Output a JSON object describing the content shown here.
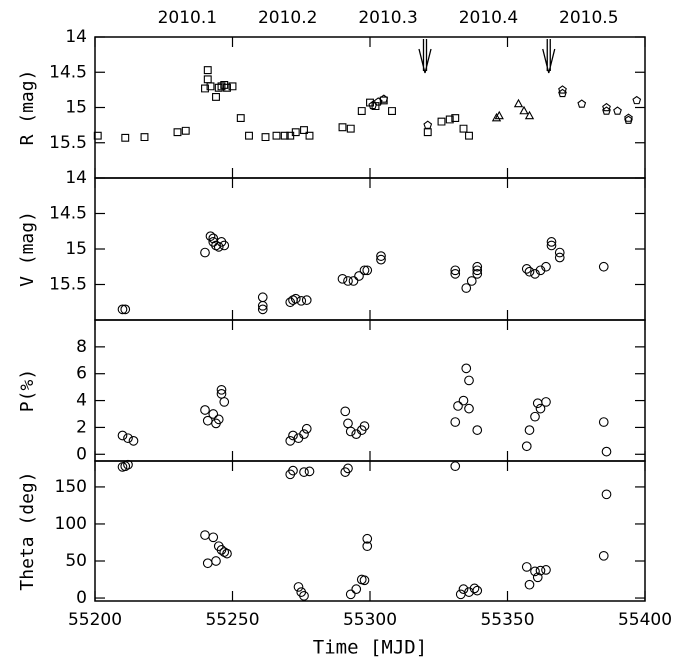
{
  "chart_data": [
    {
      "type": "scatter",
      "y_label": "R (mag)",
      "ylim": [
        16,
        14
      ],
      "yticks": [
        14,
        14.5,
        15,
        15.5
      ],
      "x2lim": [
        2010.008,
        2010.556
      ],
      "x2ticks": [
        2010.1,
        2010.2,
        2010.3,
        2010.4,
        2010.5
      ],
      "arrows": [
        55320,
        55365
      ],
      "series": [
        {
          "marker": "square",
          "color": "#000000",
          "x": [
            55201,
            55211,
            55218,
            55230,
            55233,
            55240,
            55241,
            55241,
            55242,
            55244,
            55245,
            55246,
            55247,
            55248,
            55250,
            55253,
            55256,
            55262,
            55266,
            55269,
            55271,
            55273,
            55276,
            55278,
            55290,
            55293,
            55297,
            55300,
            55302,
            55305,
            55308,
            55321,
            55326,
            55329,
            55331,
            55334,
            55336
          ],
          "values": [
            15.4,
            15.43,
            15.42,
            15.35,
            15.33,
            14.73,
            14.6,
            14.47,
            14.7,
            14.85,
            14.72,
            14.7,
            14.68,
            14.72,
            14.7,
            15.15,
            15.4,
            15.42,
            15.4,
            15.4,
            15.4,
            15.35,
            15.32,
            15.4,
            15.28,
            15.3,
            15.05,
            14.93,
            14.98,
            14.9,
            15.05,
            15.35,
            15.2,
            15.17,
            15.15,
            15.3,
            15.4
          ]
        },
        {
          "marker": "triangle",
          "color": "#000000",
          "x": [
            55346,
            55347,
            55354,
            55356,
            55358
          ],
          "values": [
            15.15,
            15.12,
            14.95,
            15.05,
            15.12
          ]
        },
        {
          "marker": "pentagon",
          "color": "#000000",
          "x": [
            55301,
            55303,
            55305,
            55321,
            55370,
            55370,
            55377,
            55386,
            55386,
            55390,
            55394,
            55394,
            55397
          ],
          "values": [
            14.97,
            14.92,
            14.88,
            15.25,
            14.8,
            14.75,
            14.95,
            15.0,
            15.05,
            15.05,
            15.15,
            15.18,
            14.9
          ]
        }
      ]
    },
    {
      "type": "scatter",
      "y_label": "V (mag)",
      "ylim": [
        16,
        14
      ],
      "yticks": [
        14,
        14.5,
        15,
        15.5
      ],
      "series": [
        {
          "marker": "circle",
          "color": "#000000",
          "x": [
            55210,
            55211,
            55240,
            55242,
            55243,
            55243,
            55244,
            55245,
            55246,
            55247,
            55261,
            55261,
            55261,
            55271,
            55272,
            55273,
            55275,
            55277,
            55290,
            55292,
            55294,
            55296,
            55298,
            55299,
            55304,
            55304,
            55331,
            55331,
            55335,
            55337,
            55339,
            55339,
            55339,
            55357,
            55358,
            55360,
            55362,
            55364,
            55366,
            55366,
            55369,
            55369,
            55385
          ],
          "values": [
            15.85,
            15.85,
            15.05,
            14.82,
            14.85,
            14.9,
            14.95,
            14.97,
            14.9,
            14.95,
            15.68,
            15.8,
            15.85,
            15.75,
            15.72,
            15.7,
            15.73,
            15.72,
            15.42,
            15.45,
            15.45,
            15.38,
            15.3,
            15.3,
            15.1,
            15.15,
            15.3,
            15.35,
            15.55,
            15.45,
            15.3,
            15.25,
            15.35,
            15.28,
            15.32,
            15.35,
            15.3,
            15.25,
            14.9,
            14.95,
            15.05,
            15.12,
            15.25
          ]
        }
      ]
    },
    {
      "type": "scatter",
      "y_label": "P(%)",
      "ylim": [
        -0.5,
        10
      ],
      "yticks": [
        0,
        2,
        4,
        6,
        8
      ],
      "series": [
        {
          "marker": "circle",
          "color": "#000000",
          "x": [
            55210,
            55212,
            55214,
            55240,
            55241,
            55243,
            55244,
            55245,
            55246,
            55246,
            55247,
            55271,
            55272,
            55274,
            55276,
            55277,
            55291,
            55292,
            55293,
            55295,
            55297,
            55298,
            55331,
            55332,
            55334,
            55335,
            55336,
            55336,
            55339,
            55357,
            55358,
            55360,
            55361,
            55362,
            55364,
            55385,
            55386
          ],
          "values": [
            1.4,
            1.2,
            1.0,
            3.3,
            2.5,
            3.0,
            2.3,
            2.6,
            4.5,
            4.8,
            3.9,
            1.0,
            1.4,
            1.2,
            1.5,
            1.9,
            3.2,
            2.3,
            1.7,
            1.5,
            1.8,
            2.1,
            2.4,
            3.6,
            4.0,
            6.4,
            5.5,
            3.4,
            1.8,
            0.6,
            1.8,
            2.8,
            3.8,
            3.4,
            3.9,
            2.4,
            0.2
          ]
        }
      ]
    },
    {
      "type": "scatter",
      "y_label": "Theta (deg)",
      "x_label": "Time [MJD]",
      "ylim": [
        -4,
        185
      ],
      "yticks": [
        0,
        50,
        100,
        150
      ],
      "xlim": [
        55200,
        55400
      ],
      "xticks": [
        55200,
        55250,
        55300,
        55350,
        55400
      ],
      "series": [
        {
          "marker": "circle",
          "color": "#000000",
          "x": [
            55210,
            55211,
            55212,
            55240,
            55241,
            55243,
            55244,
            55245,
            55246,
            55247,
            55248,
            55271,
            55272,
            55274,
            55275,
            55276,
            55278,
            55276,
            55291,
            55292,
            55293,
            55295,
            55297,
            55298,
            55299,
            55299,
            55331,
            55333,
            55334,
            55336,
            55338,
            55339,
            55357,
            55358,
            55360,
            55361,
            55362,
            55364,
            55385,
            55386
          ],
          "values": [
            177,
            178,
            180,
            85,
            47,
            82,
            50,
            70,
            65,
            62,
            60,
            167,
            172,
            15,
            8,
            170,
            171,
            3,
            170,
            175,
            5,
            12,
            25,
            24,
            80,
            70,
            178,
            5,
            12,
            8,
            13,
            10,
            42,
            18,
            36,
            28,
            37,
            38,
            57,
            140
          ]
        }
      ]
    }
  ]
}
